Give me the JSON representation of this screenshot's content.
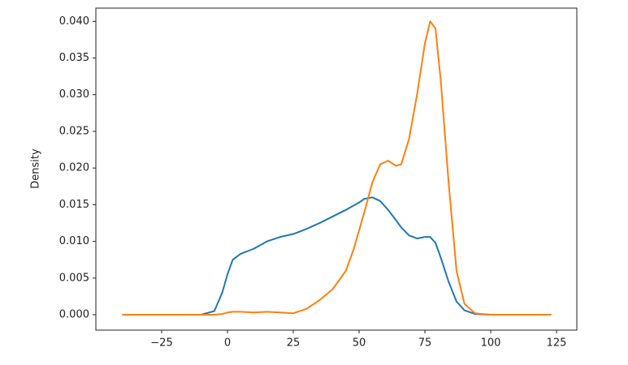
{
  "chart_data": {
    "type": "line",
    "y_label": "Density",
    "x": [
      -40,
      -10,
      -5,
      -2,
      0,
      2,
      5,
      10,
      15,
      20,
      25,
      30,
      35,
      40,
      45,
      48,
      50,
      52,
      55,
      58,
      61,
      64,
      66,
      69,
      72,
      75,
      77,
      79,
      81,
      84,
      87,
      90,
      94,
      100,
      123
    ],
    "series": [
      {
        "color": "#1f77b4",
        "values": [
          0,
          0,
          0.0005,
          0.003,
          0.0055,
          0.0075,
          0.0083,
          0.009,
          0.01,
          0.0106,
          0.011,
          0.0117,
          0.0125,
          0.0134,
          0.0143,
          0.0149,
          0.0153,
          0.0158,
          0.016,
          0.0155,
          0.0143,
          0.0129,
          0.0119,
          0.0108,
          0.0104,
          0.0106,
          0.0106,
          0.0098,
          0.0078,
          0.0045,
          0.0018,
          0.0006,
          0.0001,
          0,
          0
        ]
      },
      {
        "color": "#ff7f0e",
        "values": [
          0,
          0,
          0,
          0.0001,
          0.0003,
          0.0004,
          0.0004,
          0.0003,
          0.0004,
          0.0003,
          0.0002,
          0.0008,
          0.002,
          0.0035,
          0.006,
          0.009,
          0.0115,
          0.014,
          0.018,
          0.0205,
          0.021,
          0.0203,
          0.0205,
          0.024,
          0.03,
          0.037,
          0.04,
          0.039,
          0.032,
          0.018,
          0.006,
          0.0015,
          0.0002,
          0,
          0
        ]
      }
    ],
    "xlim": [
      -50,
      132.7
    ],
    "xticks": [
      {
        "value": -25,
        "label": "−25"
      },
      0,
      25,
      50,
      75,
      100,
      125
    ],
    "ylim": [
      -0.0021,
      0.0418
    ],
    "yticks": [
      {
        "value": 0,
        "label": "0.000"
      },
      {
        "value": 0.005,
        "label": "0.005"
      },
      {
        "value": 0.01,
        "label": "0.010"
      },
      {
        "value": 0.015,
        "label": "0.015"
      },
      {
        "value": 0.02,
        "label": "0.020"
      },
      {
        "value": 0.025,
        "label": "0.025"
      },
      {
        "value": 0.03,
        "label": "0.030"
      },
      {
        "value": 0.035,
        "label": "0.035"
      },
      {
        "value": 0.04,
        "label": "0.040"
      }
    ],
    "grid": false
  }
}
